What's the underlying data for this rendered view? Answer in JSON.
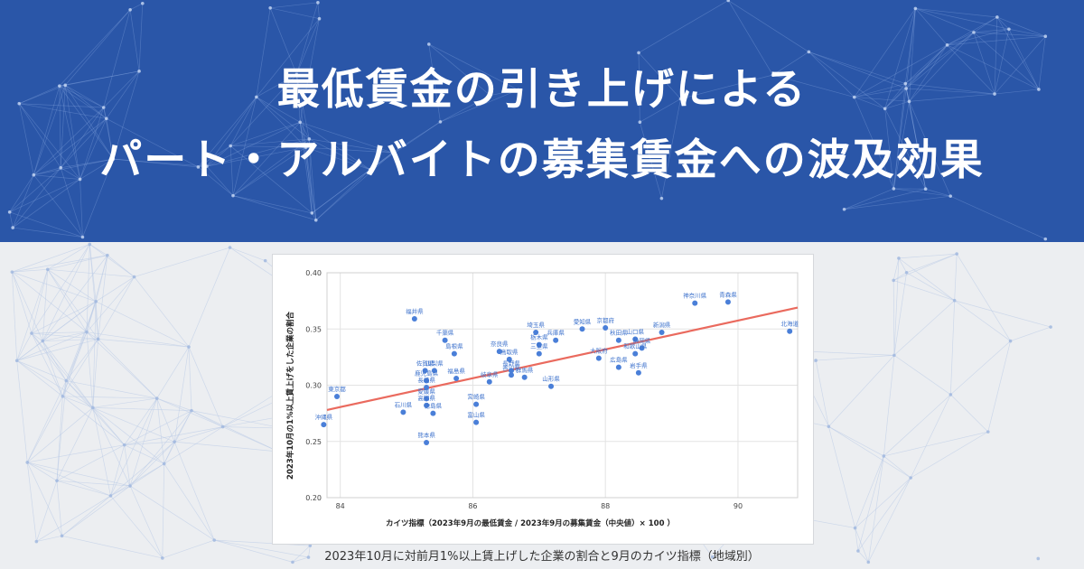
{
  "header": {
    "title_line_1": "最低賃金の引き上げによる",
    "title_line_2": "パート・アルバイトの募集賃金への波及効果"
  },
  "caption": "2023年10月に対前月1%以上賃上げした企業の割合と9月のカイツ指標（地域別）",
  "colors": {
    "banner": "#2a56a8",
    "background": "#eceef1",
    "point": "#4a7fd8",
    "point_label": "#3d72cc",
    "trend_line": "#ea6a5e",
    "network_light": "#b9c9e6"
  },
  "chart_data": {
    "type": "scatter",
    "title": "",
    "xlabel": "カイツ指標（2023年9月の最低賃金 / 2023年9月の募集賃金（中央値）× 100 ）",
    "ylabel": "2023年10月の1%以上賃上げをした企業の割合",
    "xlim": [
      83.8,
      90.9
    ],
    "ylim": [
      0.2,
      0.4
    ],
    "x_ticks": [
      84,
      86,
      88,
      90
    ],
    "y_ticks": [
      0.2,
      0.25,
      0.3,
      0.35,
      0.4
    ],
    "x_tick_labels": [
      "84",
      "86",
      "88",
      "90"
    ],
    "y_tick_labels": [
      "0.20",
      "0.25",
      "0.30",
      "0.35",
      "0.40"
    ],
    "grid": true,
    "trend_line": {
      "x1": 83.8,
      "y1": 0.278,
      "x2": 90.9,
      "y2": 0.369
    },
    "points": [
      {
        "label": "沖縄県",
        "x": 83.75,
        "y": 0.265
      },
      {
        "label": "東京都",
        "x": 83.95,
        "y": 0.29
      },
      {
        "label": "石川県",
        "x": 84.95,
        "y": 0.276
      },
      {
        "label": "福井県",
        "x": 85.12,
        "y": 0.359
      },
      {
        "label": "佐賀県",
        "x": 85.28,
        "y": 0.313
      },
      {
        "label": "山梨県",
        "x": 85.42,
        "y": 0.313
      },
      {
        "label": "鹿児島県",
        "x": 85.3,
        "y": 0.304
      },
      {
        "label": "長崎県",
        "x": 85.3,
        "y": 0.298
      },
      {
        "label": "愛媛県",
        "x": 85.3,
        "y": 0.288
      },
      {
        "label": "高知県",
        "x": 85.3,
        "y": 0.282
      },
      {
        "label": "徳島県",
        "x": 85.4,
        "y": 0.275
      },
      {
        "label": "熊本県",
        "x": 85.3,
        "y": 0.249
      },
      {
        "label": "千葉県",
        "x": 85.58,
        "y": 0.34
      },
      {
        "label": "島根県",
        "x": 85.72,
        "y": 0.328
      },
      {
        "label": "福島県",
        "x": 85.75,
        "y": 0.306
      },
      {
        "label": "岐阜県",
        "x": 86.25,
        "y": 0.303
      },
      {
        "label": "宮崎県",
        "x": 86.05,
        "y": 0.283
      },
      {
        "label": "富山県",
        "x": 86.05,
        "y": 0.267
      },
      {
        "label": "奈良県",
        "x": 86.4,
        "y": 0.33
      },
      {
        "label": "鳥取県",
        "x": 86.55,
        "y": 0.323
      },
      {
        "label": "長野県",
        "x": 86.58,
        "y": 0.313
      },
      {
        "label": "香川県",
        "x": 86.58,
        "y": 0.309
      },
      {
        "label": "群馬県",
        "x": 86.78,
        "y": 0.307
      },
      {
        "label": "埼玉県",
        "x": 86.95,
        "y": 0.347
      },
      {
        "label": "栃木県",
        "x": 87.0,
        "y": 0.336
      },
      {
        "label": "三重県",
        "x": 87.0,
        "y": 0.328
      },
      {
        "label": "山形県",
        "x": 87.18,
        "y": 0.299
      },
      {
        "label": "兵庫県",
        "x": 87.25,
        "y": 0.34
      },
      {
        "label": "愛知県",
        "x": 87.65,
        "y": 0.35
      },
      {
        "label": "大阪府",
        "x": 87.9,
        "y": 0.324
      },
      {
        "label": "京都府",
        "x": 88.0,
        "y": 0.351
      },
      {
        "label": "秋田県",
        "x": 88.2,
        "y": 0.34
      },
      {
        "label": "山口県",
        "x": 88.45,
        "y": 0.341
      },
      {
        "label": "広島県",
        "x": 88.2,
        "y": 0.316
      },
      {
        "label": "和歌山県",
        "x": 88.45,
        "y": 0.328
      },
      {
        "label": "静岡県",
        "x": 88.55,
        "y": 0.333
      },
      {
        "label": "岩手県",
        "x": 88.5,
        "y": 0.311
      },
      {
        "label": "新潟県",
        "x": 88.85,
        "y": 0.347
      },
      {
        "label": "神奈川県",
        "x": 89.35,
        "y": 0.373
      },
      {
        "label": "青森県",
        "x": 89.85,
        "y": 0.374
      },
      {
        "label": "北海道",
        "x": 90.78,
        "y": 0.348
      }
    ]
  }
}
